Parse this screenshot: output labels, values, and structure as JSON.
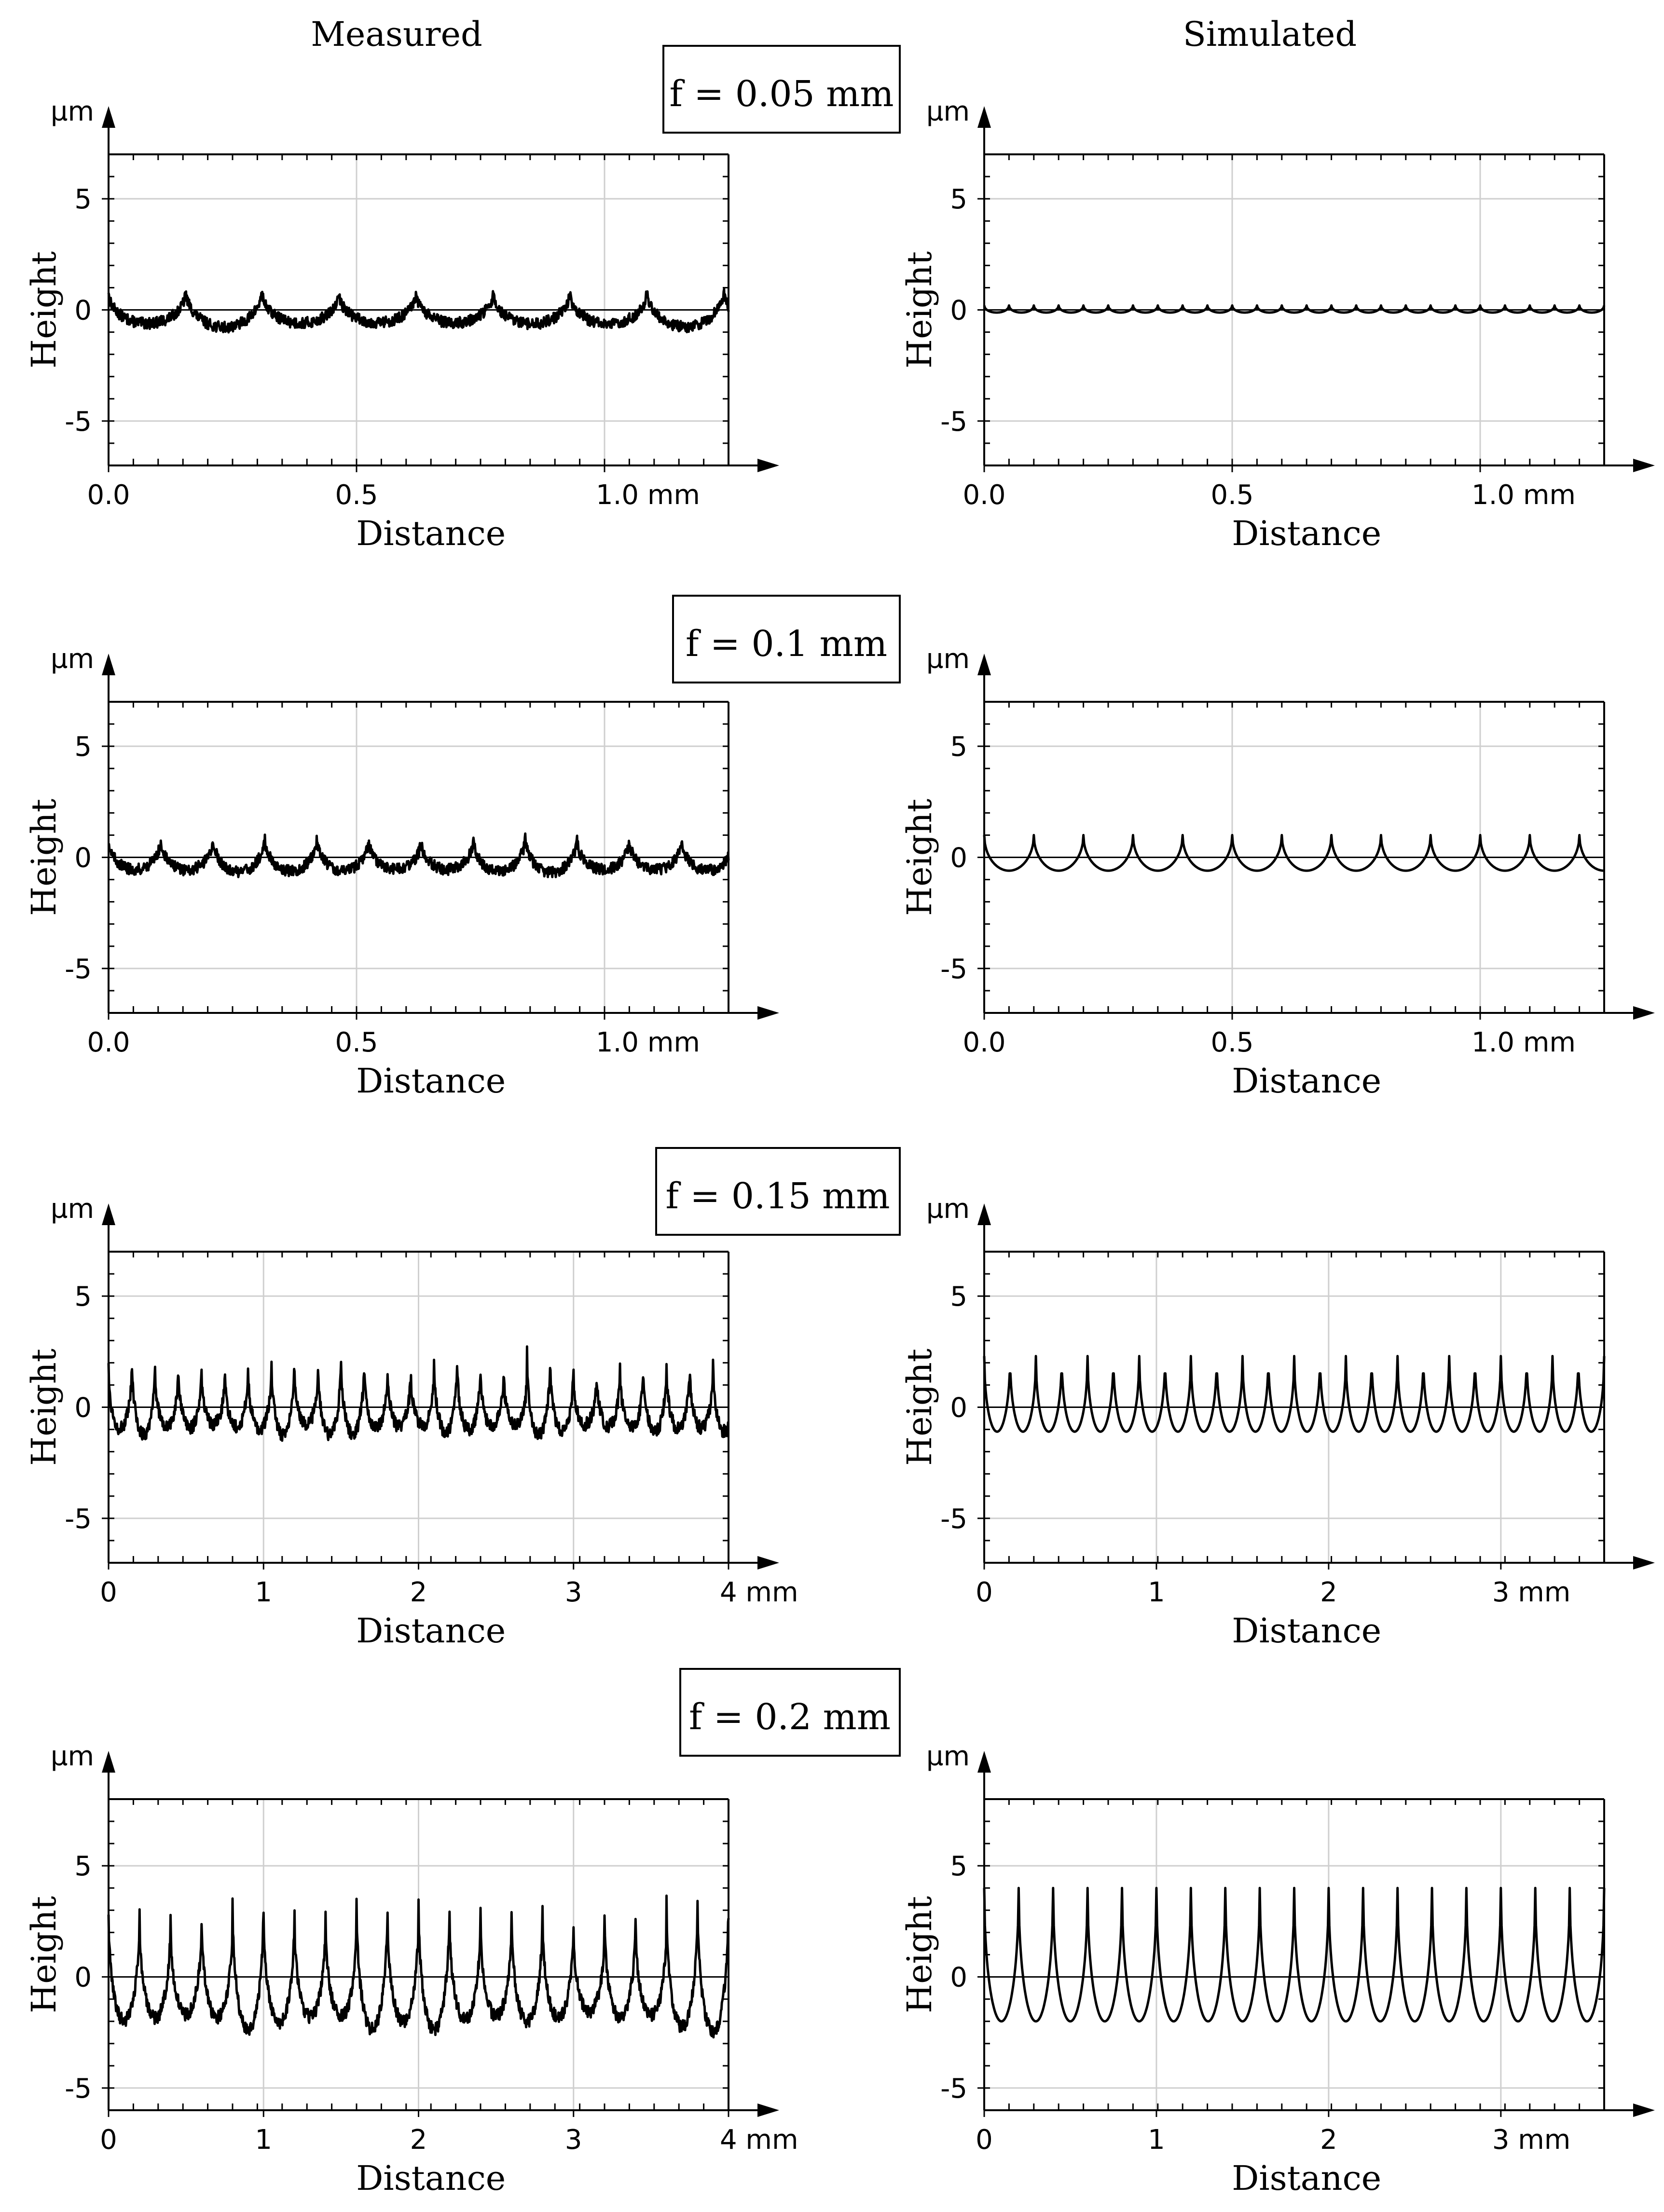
{
  "columns": {
    "measured": "Measured",
    "simulated": "Simulated"
  },
  "rows": [
    {
      "label": "f = 0.05 mm"
    },
    {
      "label": "f = 0.1 mm"
    },
    {
      "label": "f = 0.15 mm"
    },
    {
      "label": "f = 0.2 mm"
    }
  ],
  "colors": {
    "line": "#000000",
    "grid": "#cfcfcf",
    "background": "#ffffff"
  },
  "chart_data": [
    {
      "id": "r0-measured",
      "type": "line",
      "title": "Measured",
      "xlabel": "Distance",
      "ylabel": "Height",
      "yunit": "µm",
      "xunit": "mm",
      "xlim": [
        0,
        1.25
      ],
      "ylim": [
        -7,
        7
      ],
      "xticks": [
        0,
        0.5,
        1.0
      ],
      "xtick_labels": [
        "0.0",
        "0.5",
        "1.0 mm"
      ],
      "yticks": [
        5,
        0,
        -5
      ],
      "ytick_labels": [
        "5",
        "0",
        "-5"
      ],
      "series": [
        {
          "name": "measured profile",
          "profile": "cusp",
          "period": 0.155,
          "peak": 0.9,
          "trough": -0.7,
          "noise": 0.25,
          "x_end": 1.25
        }
      ]
    },
    {
      "id": "r0-simulated",
      "type": "line",
      "title": "Simulated",
      "xlabel": "Distance",
      "ylabel": "Height",
      "yunit": "µm",
      "xunit": "mm",
      "xlim": [
        0,
        1.25
      ],
      "ylim": [
        -7,
        7
      ],
      "xticks": [
        0,
        0.5,
        1.0
      ],
      "xtick_labels": [
        "0.0",
        "0.5",
        "1.0 mm"
      ],
      "yticks": [
        5,
        0,
        -5
      ],
      "ytick_labels": [
        "5",
        "0",
        "-5"
      ],
      "series": [
        {
          "name": "simulated profile",
          "profile": "cusp",
          "period": 0.05,
          "peak": 0.2,
          "trough": -0.12,
          "noise": 0,
          "x_end": 1.25
        }
      ]
    },
    {
      "id": "r1-measured",
      "type": "line",
      "title": "Measured",
      "xlabel": "Distance",
      "ylabel": "Height",
      "yunit": "µm",
      "xunit": "mm",
      "xlim": [
        0,
        1.25
      ],
      "ylim": [
        -7,
        7
      ],
      "xticks": [
        0,
        0.5,
        1.0
      ],
      "xtick_labels": [
        "0.0",
        "0.5",
        "1.0 mm"
      ],
      "yticks": [
        5,
        0,
        -5
      ],
      "ytick_labels": [
        "5",
        "0",
        "-5"
      ],
      "series": [
        {
          "name": "measured profile",
          "profile": "cusp",
          "period": 0.105,
          "peak": 0.9,
          "trough": -0.6,
          "noise": 0.25,
          "x_end": 1.25
        }
      ]
    },
    {
      "id": "r1-simulated",
      "type": "line",
      "title": "Simulated",
      "xlabel": "Distance",
      "ylabel": "Height",
      "yunit": "µm",
      "xunit": "mm",
      "xlim": [
        0,
        1.25
      ],
      "ylim": [
        -7,
        7
      ],
      "xticks": [
        0,
        0.5,
        1.0
      ],
      "xtick_labels": [
        "0.0",
        "0.5",
        "1.0 mm"
      ],
      "yticks": [
        5,
        0,
        -5
      ],
      "ytick_labels": [
        "5",
        "0",
        "-5"
      ],
      "series": [
        {
          "name": "simulated profile",
          "profile": "cusp",
          "period": 0.1,
          "peak": 1.0,
          "trough": -0.6,
          "noise": 0,
          "x_end": 1.25
        }
      ]
    },
    {
      "id": "r2-measured",
      "type": "line",
      "title": "Measured",
      "xlabel": "Distance",
      "ylabel": "Height",
      "yunit": "µm",
      "xunit": "mm",
      "xlim": [
        0,
        4
      ],
      "ylim": [
        -7,
        7
      ],
      "xticks": [
        0,
        1,
        2,
        3,
        4
      ],
      "xtick_labels": [
        "0",
        "1",
        "2",
        "3",
        "4 mm"
      ],
      "yticks": [
        5,
        0,
        -5
      ],
      "ytick_labels": [
        "5",
        "0",
        "-5"
      ],
      "series": [
        {
          "name": "measured profile",
          "profile": "cusp",
          "period": 0.15,
          "peak": 2.0,
          "trough": -1.0,
          "noise": 0.3,
          "x_end": 4
        }
      ]
    },
    {
      "id": "r2-simulated",
      "type": "line",
      "title": "Simulated",
      "xlabel": "Distance",
      "ylabel": "Height",
      "yunit": "µm",
      "xunit": "mm",
      "xlim": [
        0,
        3.6
      ],
      "ylim": [
        -7,
        7
      ],
      "xticks": [
        0,
        1,
        2,
        3
      ],
      "xtick_labels": [
        "0",
        "1",
        "2",
        "3 mm"
      ],
      "yticks": [
        5,
        0,
        -5
      ],
      "ytick_labels": [
        "5",
        "0",
        "-5"
      ],
      "series": [
        {
          "name": "simulated profile",
          "profile": "cusp",
          "period": 0.15,
          "peak": 2.3,
          "trough": -1.1,
          "noise": 0,
          "x_end": 3.6
        }
      ]
    },
    {
      "id": "r3-measured",
      "type": "line",
      "title": "Measured",
      "xlabel": "Distance",
      "ylabel": "Height",
      "yunit": "µm",
      "xunit": "mm",
      "xlim": [
        0,
        4
      ],
      "ylim": [
        -6,
        8
      ],
      "xticks": [
        0,
        1,
        2,
        3,
        4
      ],
      "xtick_labels": [
        "0",
        "1",
        "2",
        "3",
        "4 mm"
      ],
      "yticks": [
        5,
        0,
        -5
      ],
      "ytick_labels": [
        "5",
        "0",
        "-5"
      ],
      "series": [
        {
          "name": "measured profile",
          "profile": "cusp",
          "period": 0.2,
          "peak": 3.0,
          "trough": -2.0,
          "noise": 0.3,
          "x_end": 4
        }
      ]
    },
    {
      "id": "r3-simulated",
      "type": "line",
      "title": "Simulated",
      "xlabel": "Distance",
      "ylabel": "Height",
      "yunit": "µm",
      "xunit": "mm",
      "xlim": [
        0,
        3.6
      ],
      "ylim": [
        -6,
        8
      ],
      "xticks": [
        0,
        1,
        2,
        3
      ],
      "xtick_labels": [
        "0",
        "1",
        "2",
        "3 mm"
      ],
      "yticks": [
        5,
        0,
        -5
      ],
      "ytick_labels": [
        "5",
        "0",
        "-5"
      ],
      "series": [
        {
          "name": "simulated profile",
          "profile": "cusp",
          "period": 0.2,
          "peak": 4.0,
          "trough": -2.0,
          "noise": 0,
          "x_end": 3.6
        }
      ]
    }
  ]
}
